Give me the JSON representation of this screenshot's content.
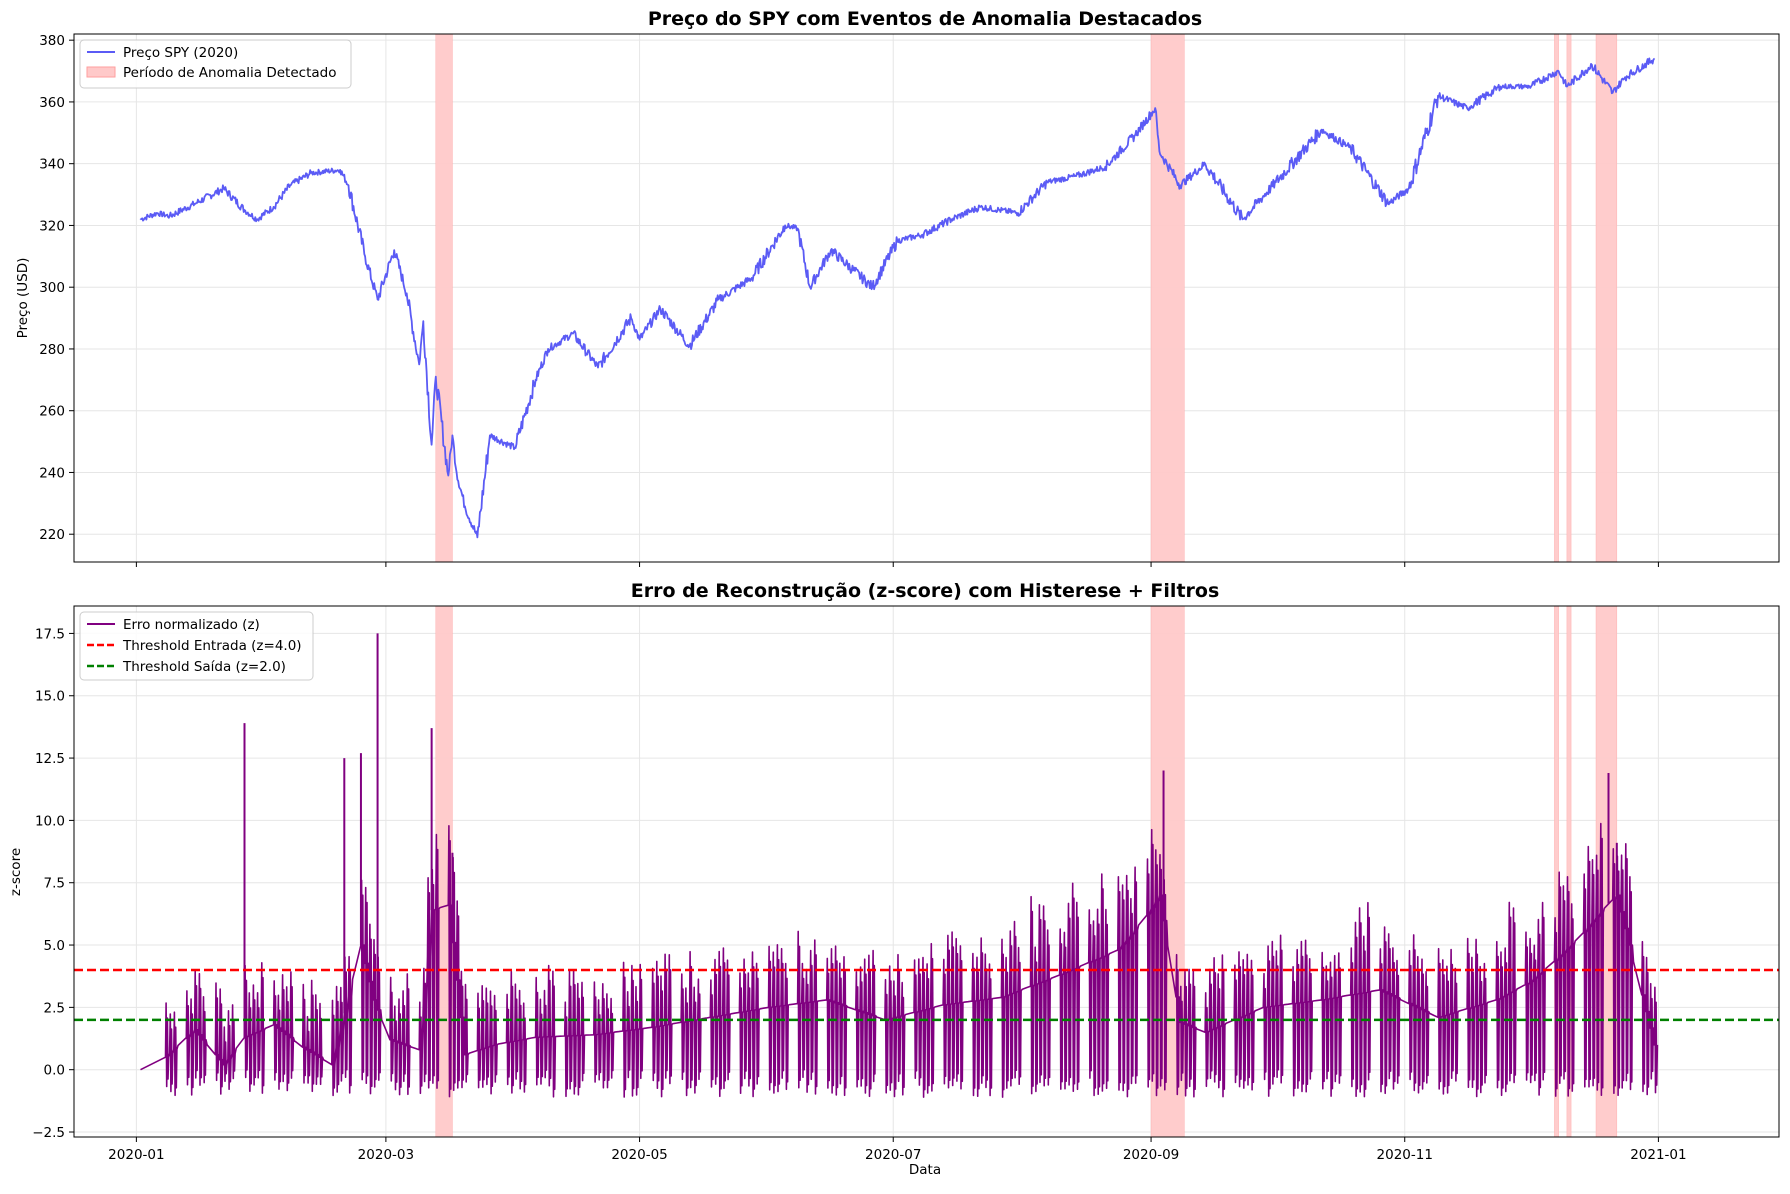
{
  "chart_data": [
    {
      "type": "line",
      "title": "Preço do SPY com Eventos de Anomalia Destacados",
      "xlabel": "",
      "ylabel": "Preço (USD)",
      "xlim": [
        "2019-12-17",
        "2021-01-30"
      ],
      "ylim": [
        211,
        382
      ],
      "yticks": [
        220,
        240,
        260,
        280,
        300,
        320,
        340,
        360,
        380
      ],
      "xticks": [
        "2020-01",
        "2020-03",
        "2020-05",
        "2020-07",
        "2020-09",
        "2020-11",
        "2021-01"
      ],
      "show_xtick_labels": false,
      "grid": true,
      "legend_position": "upper-left",
      "legend": [
        "Preço SPY (2020)",
        "Período de Anomalia Detectado"
      ],
      "line_color": "#5b5bf5",
      "anomaly_color": "#ffb3b3",
      "series": [
        {
          "name": "Preço SPY (2020)",
          "x": [
            "2020-01-02",
            "2020-01-06",
            "2020-01-09",
            "2020-01-15",
            "2020-01-22",
            "2020-01-27",
            "2020-01-30",
            "2020-02-03",
            "2020-02-07",
            "2020-02-12",
            "2020-02-19",
            "2020-02-21",
            "2020-02-25",
            "2020-02-28",
            "2020-03-03",
            "2020-03-06",
            "2020-03-09",
            "2020-03-10",
            "2020-03-12",
            "2020-03-13",
            "2020-03-16",
            "2020-03-17",
            "2020-03-18",
            "2020-03-20",
            "2020-03-23",
            "2020-03-26",
            "2020-04-01",
            "2020-04-06",
            "2020-04-09",
            "2020-04-15",
            "2020-04-21",
            "2020-04-29",
            "2020-05-01",
            "2020-05-06",
            "2020-05-13",
            "2020-05-20",
            "2020-05-28",
            "2020-06-05",
            "2020-06-08",
            "2020-06-11",
            "2020-06-16",
            "2020-06-26",
            "2020-07-02",
            "2020-07-08",
            "2020-07-15",
            "2020-07-22",
            "2020-07-31",
            "2020-08-07",
            "2020-08-14",
            "2020-08-21",
            "2020-08-28",
            "2020-09-02",
            "2020-09-03",
            "2020-09-08",
            "2020-09-14",
            "2020-09-23",
            "2020-10-01",
            "2020-10-12",
            "2020-10-19",
            "2020-10-28",
            "2020-11-02",
            "2020-11-09",
            "2020-11-16",
            "2020-11-24",
            "2020-12-01",
            "2020-12-08",
            "2020-12-10",
            "2020-12-16",
            "2020-12-21",
            "2020-12-24",
            "2020-12-31"
          ],
          "y": [
            322,
            324,
            323,
            327,
            332,
            325,
            322,
            326,
            333,
            337,
            338,
            333,
            310,
            296,
            312,
            298,
            275,
            289,
            249,
            271,
            239,
            252,
            240,
            229,
            219,
            252,
            248,
            270,
            280,
            285,
            274,
            290,
            283,
            293,
            281,
            296,
            303,
            320,
            319,
            300,
            312,
            300,
            315,
            317,
            322,
            326,
            324,
            334,
            336,
            339,
            349,
            358,
            344,
            333,
            340,
            322,
            334,
            351,
            345,
            327,
            332,
            362,
            358,
            365,
            365,
            370,
            365,
            372,
            363,
            368,
            374
          ]
        }
      ],
      "anomalies": [
        {
          "start": "2020-03-13",
          "end": "2020-03-17"
        },
        {
          "start": "2020-09-01",
          "end": "2020-09-09"
        },
        {
          "start": "2020-12-07",
          "end": "2020-12-08"
        },
        {
          "start": "2020-12-10",
          "end": "2020-12-11"
        },
        {
          "start": "2020-12-17",
          "end": "2020-12-22"
        }
      ]
    },
    {
      "type": "line",
      "title": "Erro de Reconstrução (z-score) com Histerese + Filtros",
      "xlabel": "Data",
      "ylabel": "z-score",
      "xlim": [
        "2019-12-17",
        "2021-01-30"
      ],
      "ylim": [
        -2.7,
        18.6
      ],
      "yticks": [
        -2.5,
        0.0,
        2.5,
        5.0,
        7.5,
        10.0,
        12.5,
        15.0,
        17.5
      ],
      "ytick_labels": [
        "−2.5",
        "0.0",
        "2.5",
        "5.0",
        "7.5",
        "10.0",
        "12.5",
        "15.0",
        "17.5"
      ],
      "xticks": [
        "2020-01",
        "2020-03",
        "2020-05",
        "2020-07",
        "2020-09",
        "2020-11",
        "2021-01"
      ],
      "grid": true,
      "legend_position": "upper-left",
      "legend": [
        "Erro normalizado (z)",
        "Threshold Entrada (z=4.0)",
        "Threshold Saída (z=2.0)"
      ],
      "line_color": "#800080",
      "anomaly_color": "#ffb3b3",
      "series": [
        {
          "name": "Erro normalizado (z)",
          "x": [
            "2020-01-02",
            "2020-01-08",
            "2020-01-15",
            "2020-01-22",
            "2020-01-27",
            "2020-02-03",
            "2020-02-10",
            "2020-02-17",
            "2020-02-24",
            "2020-02-27",
            "2020-03-02",
            "2020-03-09",
            "2020-03-12",
            "2020-03-16",
            "2020-03-20",
            "2020-03-27",
            "2020-04-06",
            "2020-04-20",
            "2020-05-04",
            "2020-05-18",
            "2020-06-01",
            "2020-06-15",
            "2020-06-29",
            "2020-07-13",
            "2020-07-27",
            "2020-08-10",
            "2020-08-24",
            "2020-08-31",
            "2020-09-03",
            "2020-09-08",
            "2020-09-14",
            "2020-09-28",
            "2020-10-12",
            "2020-10-26",
            "2020-11-09",
            "2020-11-23",
            "2020-12-01",
            "2020-12-08",
            "2020-12-14",
            "2020-12-18",
            "2020-12-22",
            "2020-12-31"
          ],
          "y": [
            0.0,
            0.5,
            1.6,
            0.2,
            1.3,
            1.8,
            0.9,
            0.2,
            5.0,
            2.8,
            1.2,
            0.8,
            6.4,
            6.6,
            0.6,
            1.0,
            1.3,
            1.4,
            1.7,
            2.1,
            2.5,
            2.8,
            2.0,
            2.6,
            2.9,
            3.8,
            4.8,
            6.2,
            7.0,
            1.9,
            1.5,
            2.5,
            2.8,
            3.2,
            2.1,
            2.8,
            3.5,
            4.5,
            5.5,
            6.3,
            7.0,
            1.0
          ]
        },
        {
          "name": "Threshold Entrada (z=4.0)",
          "y": 4.0,
          "color": "#ff0000",
          "style": "dashed"
        },
        {
          "name": "Threshold Saída (z=2.0)",
          "y": 2.0,
          "color": "#008000",
          "style": "dashed"
        }
      ],
      "spikes": [
        {
          "x": "2020-01-27",
          "y": 13.9
        },
        {
          "x": "2020-02-20",
          "y": 12.5
        },
        {
          "x": "2020-02-24",
          "y": 12.7
        },
        {
          "x": "2020-02-28",
          "y": 17.5
        },
        {
          "x": "2020-03-12",
          "y": 13.7
        },
        {
          "x": "2020-03-17",
          "y": 8.7
        },
        {
          "x": "2020-09-04",
          "y": 12.0
        },
        {
          "x": "2020-12-20",
          "y": 11.9
        },
        {
          "x": "2020-12-22",
          "y": 9.1
        }
      ],
      "anomalies": [
        {
          "start": "2020-03-13",
          "end": "2020-03-17"
        },
        {
          "start": "2020-09-01",
          "end": "2020-09-09"
        },
        {
          "start": "2020-12-07",
          "end": "2020-12-08"
        },
        {
          "start": "2020-12-10",
          "end": "2020-12-11"
        },
        {
          "start": "2020-12-17",
          "end": "2020-12-22"
        }
      ]
    }
  ]
}
